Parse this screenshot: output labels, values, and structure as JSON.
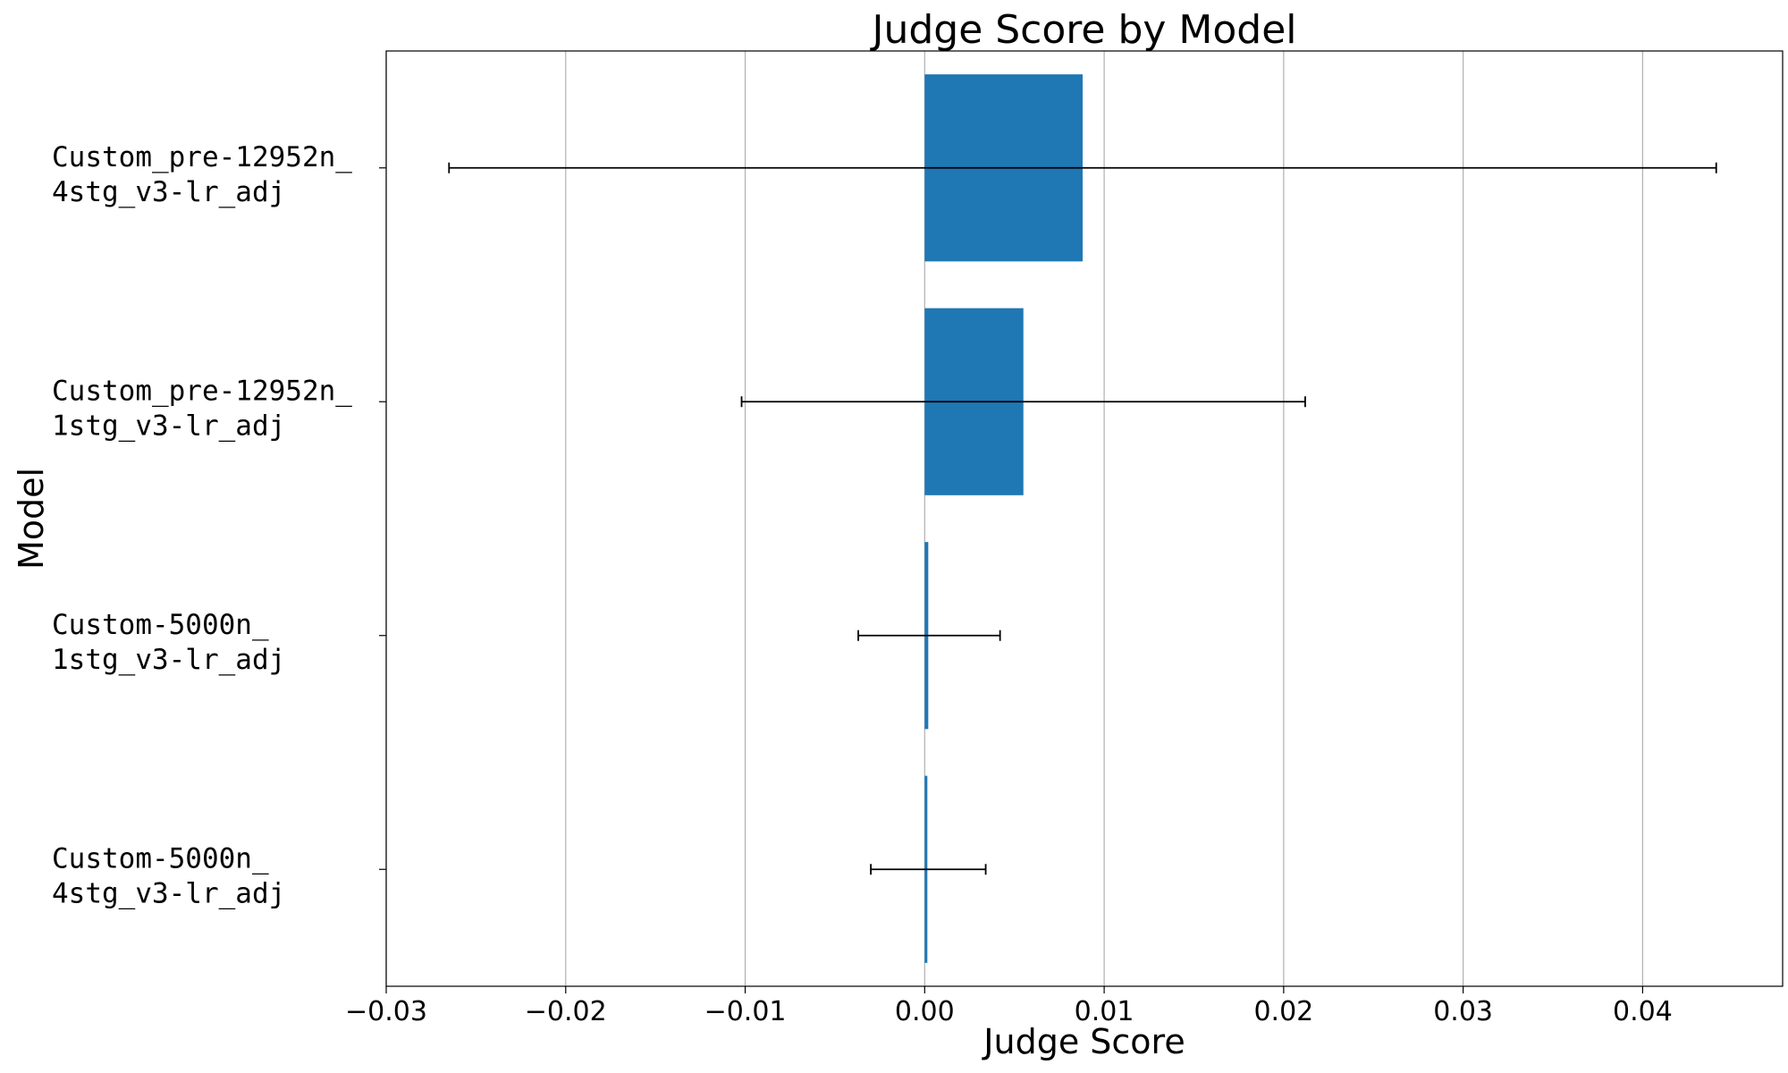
{
  "chart_data": {
    "type": "bar",
    "orientation": "horizontal",
    "title": "Judge Score by Model",
    "xlabel": "Judge Score",
    "ylabel": "Model",
    "xlim": [
      -0.03,
      0.0478
    ],
    "xticks": [
      -0.03,
      -0.02,
      -0.01,
      0.0,
      0.01,
      0.02,
      0.03,
      0.04
    ],
    "xtick_labels": [
      "−0.03",
      "−0.02",
      "−0.01",
      "0.00",
      "0.01",
      "0.02",
      "0.03",
      "0.04"
    ],
    "grid": "x-major",
    "bar_color": "#1f77b4",
    "categories": [
      {
        "lines": [
          "Custom_pre-12952n_",
          "4stg_v3-lr_adj"
        ]
      },
      {
        "lines": [
          "Custom_pre-12952n_",
          "1stg_v3-lr_adj"
        ]
      },
      {
        "lines": [
          "Custom-5000n_",
          "1stg_v3-lr_adj"
        ]
      },
      {
        "lines": [
          "Custom-5000n_",
          "4stg_v3-lr_adj"
        ]
      }
    ],
    "values": [
      0.0088,
      0.0055,
      0.0002,
      0.0001
    ],
    "error_low": [
      -0.0265,
      -0.0102,
      -0.0037,
      -0.003
    ],
    "error_high": [
      0.0441,
      0.0212,
      0.0042,
      0.0034
    ]
  }
}
